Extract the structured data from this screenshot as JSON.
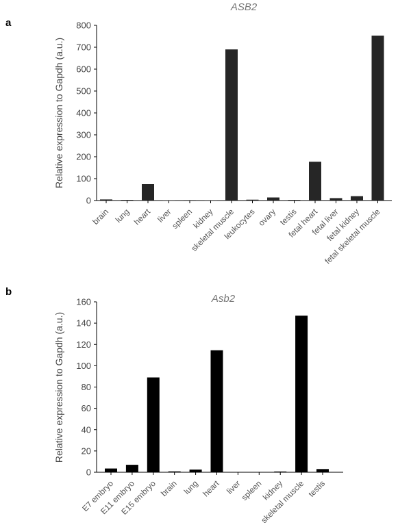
{
  "panels": [
    {
      "letter": "a"
    },
    {
      "letter": "b"
    }
  ],
  "chart_data": [
    {
      "type": "bar",
      "title": "ASB2",
      "ylabel": "Relative expression to Gapdh (a.u.)",
      "xlabel": "",
      "ylim": [
        0,
        800
      ],
      "yticks": [
        0,
        100,
        200,
        300,
        400,
        500,
        600,
        700,
        800
      ],
      "categories": [
        "brain",
        "lung",
        "heart",
        "liver",
        "spleen",
        "kidney",
        "skeletal muscle",
        "leukocytes",
        "ovary",
        "testis",
        "fetal heart",
        "fetal liver",
        "fetal kidney",
        "fetal skeletal muscle"
      ],
      "values": [
        5,
        3,
        75,
        1,
        2,
        1,
        690,
        4,
        14,
        3,
        177,
        11,
        20,
        753
      ],
      "bar_color": "#262626",
      "grid": false,
      "legend": "none"
    },
    {
      "type": "bar",
      "title": "Asb2",
      "ylabel": "Relative expression to Gapdh (a.u.)",
      "xlabel": "",
      "ylim": [
        0,
        160
      ],
      "yticks": [
        0,
        20,
        40,
        60,
        80,
        100,
        120,
        140,
        160
      ],
      "categories": [
        "E7 embryo",
        "E11 embryo",
        "E15 embryo",
        "brain",
        "lung",
        "heart",
        "liver",
        "spleen",
        "kidney",
        "skeletal muscle",
        "testis"
      ],
      "values": [
        3.5,
        7,
        89,
        0.8,
        2.5,
        114.5,
        0,
        0,
        0.7,
        147,
        3
      ],
      "bar_color": "#000000",
      "grid": false,
      "legend": "none"
    }
  ]
}
